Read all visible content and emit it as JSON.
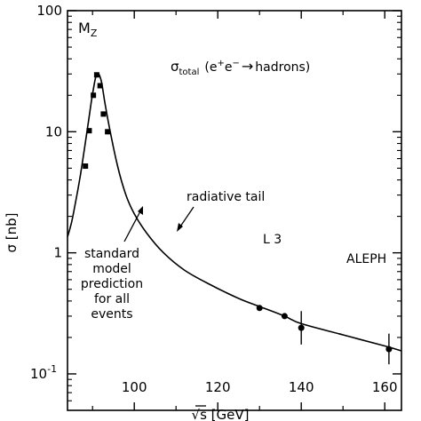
{
  "chart_data": {
    "type": "scatter",
    "title": "",
    "xlabel": "√s  [GeV]",
    "ylabel": "σ [nb]",
    "xlim": [
      84,
      164
    ],
    "ylim": [
      0.05,
      100
    ],
    "yscale": "log",
    "grid": false,
    "x_ticks": [
      100,
      120,
      140,
      160
    ],
    "x_tick_labels": [
      "100",
      "120",
      "140",
      "160"
    ],
    "y_ticks": [
      100,
      10,
      1,
      0.1
    ],
    "y_tick_labels": [
      {
        "base": "100",
        "exp": ""
      },
      {
        "base": "10",
        "exp": ""
      },
      {
        "base": "1",
        "exp": ""
      },
      {
        "base": "10",
        "exp": "-1"
      }
    ],
    "series": [
      {
        "marker": "square",
        "points": [
          {
            "x": 88.3,
            "y": 5.2
          },
          {
            "x": 89.2,
            "y": 10.2
          },
          {
            "x": 90.2,
            "y": 20.0
          },
          {
            "x": 91.0,
            "y": 29.5
          },
          {
            "x": 91.8,
            "y": 24.0
          },
          {
            "x": 92.6,
            "y": 14.0
          },
          {
            "x": 93.6,
            "y": 10.0
          }
        ]
      },
      {
        "marker": "circle",
        "points": [
          {
            "x": 130.0,
            "y": 0.35
          },
          {
            "x": 136.0,
            "y": 0.3
          },
          {
            "x": 140.0,
            "y": 0.24,
            "err_low": 0.175,
            "err_high": 0.33
          },
          {
            "x": 161.0,
            "y": 0.16,
            "err_low": 0.12,
            "err_high": 0.215
          }
        ]
      }
    ],
    "curve": {
      "x": [
        84,
        85,
        86,
        87,
        88,
        89,
        90,
        91,
        92,
        93,
        94,
        96,
        98,
        100,
        103,
        107,
        112,
        118,
        125,
        130,
        136,
        140,
        150,
        160,
        164
      ],
      "y": [
        1.35,
        1.8,
        2.7,
        4.2,
        7.0,
        12.0,
        20.5,
        30.0,
        27.0,
        17.0,
        11.0,
        5.2,
        3.0,
        2.1,
        1.45,
        1.0,
        0.72,
        0.55,
        0.42,
        0.36,
        0.3,
        0.26,
        0.21,
        0.17,
        0.155
      ]
    },
    "annotations": {
      "mz": {
        "base": "M",
        "sub": "Z"
      },
      "process": {
        "sigma": "σ",
        "sub": "total",
        "reaction_pre": "(e",
        "plus": "+",
        "e": "e",
        "minus": "−",
        "arrow": "→",
        "product": "hadrons)"
      },
      "radiative_tail": "radiative  tail",
      "sm_prediction": [
        "standard",
        "model",
        "prediction",
        "for  all",
        "events"
      ],
      "l3": "L 3",
      "aleph": "ALEPH"
    }
  }
}
